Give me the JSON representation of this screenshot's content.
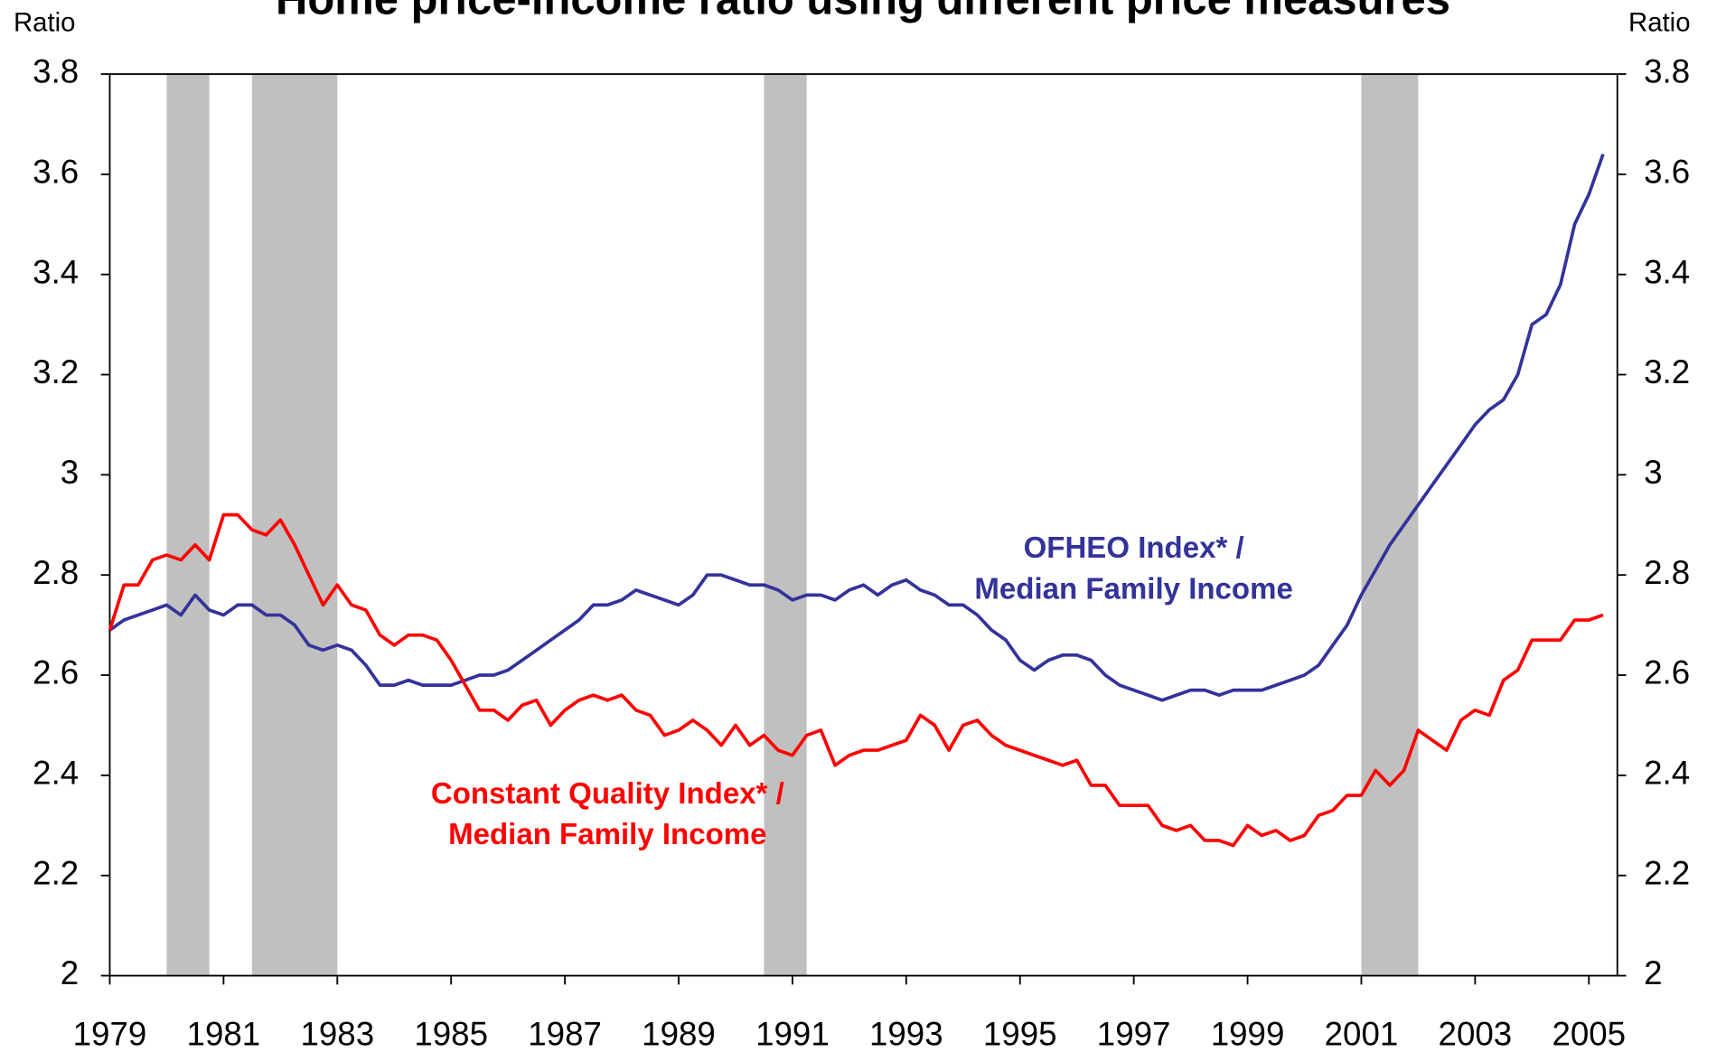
{
  "chart_data": {
    "type": "line",
    "title": "Home price-income ratio using different price measures",
    "y_label": "Ratio",
    "y2_label": "Ratio",
    "x": [
      1979,
      1979.25,
      1979.5,
      1979.75,
      1980,
      1980.25,
      1980.5,
      1980.75,
      1981,
      1981.25,
      1981.5,
      1981.75,
      1982,
      1982.25,
      1982.5,
      1982.75,
      1983,
      1983.25,
      1983.5,
      1983.75,
      1984,
      1984.25,
      1984.5,
      1984.75,
      1985,
      1985.25,
      1985.5,
      1985.75,
      1986,
      1986.25,
      1986.5,
      1986.75,
      1987,
      1987.25,
      1987.5,
      1987.75,
      1988,
      1988.25,
      1988.5,
      1988.75,
      1989,
      1989.25,
      1989.5,
      1989.75,
      1990,
      1990.25,
      1990.5,
      1990.75,
      1991,
      1991.25,
      1991.5,
      1991.75,
      1992,
      1992.25,
      1992.5,
      1992.75,
      1993,
      1993.25,
      1993.5,
      1993.75,
      1994,
      1994.25,
      1994.5,
      1994.75,
      1995,
      1995.25,
      1995.5,
      1995.75,
      1996,
      1996.25,
      1996.5,
      1996.75,
      1997,
      1997.25,
      1997.5,
      1997.75,
      1998,
      1998.25,
      1998.5,
      1998.75,
      1999,
      1999.25,
      1999.5,
      1999.75,
      2000,
      2000.25,
      2000.5,
      2000.75,
      2001,
      2001.25,
      2001.5,
      2001.75,
      2002,
      2002.25,
      2002.5,
      2002.75,
      2003,
      2003.25,
      2003.5,
      2003.75,
      2004,
      2004.25,
      2004.5,
      2004.75,
      2005,
      2005.25
    ],
    "series": [
      {
        "name": "OFHEO Index* / Median Family Income",
        "color": "#333399",
        "values": [
          2.69,
          2.71,
          2.72,
          2.73,
          2.74,
          2.72,
          2.76,
          2.73,
          2.72,
          2.74,
          2.74,
          2.72,
          2.72,
          2.7,
          2.66,
          2.65,
          2.66,
          2.65,
          2.62,
          2.58,
          2.58,
          2.59,
          2.58,
          2.58,
          2.58,
          2.59,
          2.6,
          2.6,
          2.61,
          2.63,
          2.65,
          2.67,
          2.69,
          2.71,
          2.74,
          2.74,
          2.75,
          2.77,
          2.76,
          2.75,
          2.74,
          2.76,
          2.8,
          2.8,
          2.79,
          2.78,
          2.78,
          2.77,
          2.75,
          2.76,
          2.76,
          2.75,
          2.77,
          2.78,
          2.76,
          2.78,
          2.79,
          2.77,
          2.76,
          2.74,
          2.74,
          2.72,
          2.69,
          2.67,
          2.63,
          2.61,
          2.63,
          2.64,
          2.64,
          2.63,
          2.6,
          2.58,
          2.57,
          2.56,
          2.55,
          2.56,
          2.57,
          2.57,
          2.56,
          2.57,
          2.57,
          2.57,
          2.58,
          2.59,
          2.6,
          2.62,
          2.66,
          2.7,
          2.76,
          2.81,
          2.86,
          2.9,
          2.94,
          2.98,
          3.02,
          3.06,
          3.1,
          3.13,
          3.15,
          3.2,
          3.3,
          3.32,
          3.38,
          3.5,
          3.56,
          3.64
        ]
      },
      {
        "name": "Constant Quality Index* / Median Family Income",
        "color": "#ff0000",
        "values": [
          2.69,
          2.78,
          2.78,
          2.83,
          2.84,
          2.83,
          2.86,
          2.83,
          2.92,
          2.92,
          2.89,
          2.88,
          2.91,
          2.86,
          2.8,
          2.74,
          2.78,
          2.74,
          2.73,
          2.68,
          2.66,
          2.68,
          2.68,
          2.67,
          2.63,
          2.58,
          2.53,
          2.53,
          2.51,
          2.54,
          2.55,
          2.5,
          2.53,
          2.55,
          2.56,
          2.55,
          2.56,
          2.53,
          2.52,
          2.48,
          2.49,
          2.51,
          2.49,
          2.46,
          2.5,
          2.46,
          2.48,
          2.45,
          2.44,
          2.48,
          2.49,
          2.42,
          2.44,
          2.45,
          2.45,
          2.46,
          2.47,
          2.52,
          2.5,
          2.45,
          2.5,
          2.51,
          2.48,
          2.46,
          2.45,
          2.44,
          2.43,
          2.42,
          2.43,
          2.38,
          2.38,
          2.34,
          2.34,
          2.34,
          2.3,
          2.29,
          2.3,
          2.27,
          2.27,
          2.26,
          2.3,
          2.28,
          2.29,
          2.27,
          2.28,
          2.32,
          2.33,
          2.36,
          2.36,
          2.41,
          2.38,
          2.41,
          2.49,
          2.47,
          2.45,
          2.51,
          2.53,
          2.52,
          2.59,
          2.61,
          2.67,
          2.67,
          2.67,
          2.71,
          2.71,
          2.72
        ]
      }
    ],
    "annotations": [
      {
        "lines": [
          "OFHEO Index* /",
          "Median Family Income"
        ],
        "x": 1997,
        "y": 2.85,
        "color": "#333399"
      },
      {
        "lines": [
          "Constant Quality Index* /",
          "Median Family Income"
        ],
        "x": 1987.75,
        "y": 2.36,
        "color": "#ff0000"
      }
    ],
    "shaded_periods": [
      [
        1980,
        1980.75
      ],
      [
        1981.5,
        1983
      ],
      [
        1990.5,
        1991.25
      ],
      [
        2001,
        2002
      ]
    ],
    "shade_color": "#c0c0c0",
    "xlim": [
      1979,
      2005.5
    ],
    "xticks": [
      1979,
      1981,
      1983,
      1985,
      1987,
      1989,
      1991,
      1993,
      1995,
      1997,
      1999,
      2001,
      2003,
      2005
    ],
    "ylim": [
      2,
      3.8
    ],
    "yticks": [
      2,
      2.2,
      2.4,
      2.6,
      2.8,
      3,
      3.2,
      3.4,
      3.6,
      3.8
    ],
    "y2lim": [
      2,
      3.8
    ],
    "y2ticks": [
      2,
      2.2,
      2.4,
      2.6,
      2.8,
      3,
      3.2,
      3.4,
      3.6,
      3.8
    ],
    "grid": false
  }
}
